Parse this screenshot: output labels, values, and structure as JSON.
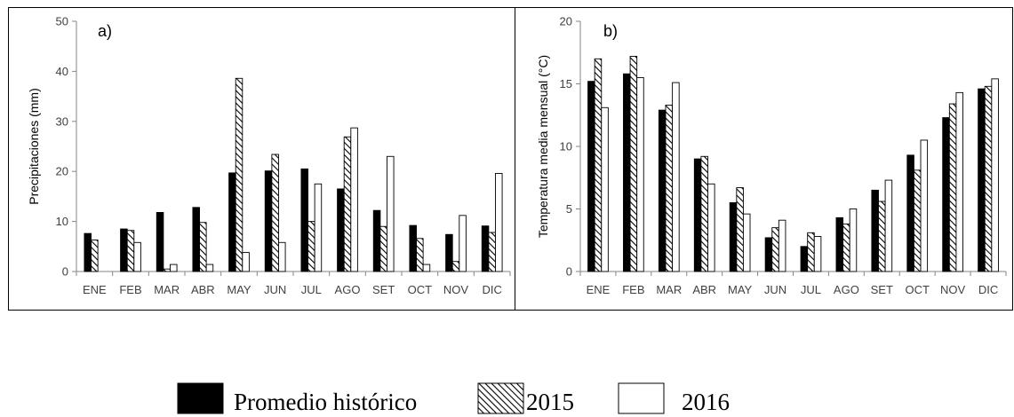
{
  "chart_data": [
    {
      "type": "bar",
      "panel_label": "a)",
      "ylabel": "Precipitaciones (mm)",
      "ylim": [
        0,
        50
      ],
      "yticks": [
        0,
        10,
        20,
        30,
        40,
        50
      ],
      "categories": [
        "ENE",
        "FEB",
        "MAR",
        "ABR",
        "MAY",
        "JUN",
        "JUL",
        "AGO",
        "SET",
        "OCT",
        "NOV",
        "DIC"
      ],
      "series": [
        {
          "name": "Promedio histórico",
          "values": [
            7.6,
            8.5,
            11.8,
            12.8,
            19.7,
            20.1,
            20.5,
            16.5,
            12.2,
            9.2,
            7.4,
            9.1
          ]
        },
        {
          "name": "2015",
          "values": [
            6.3,
            8.2,
            0.5,
            9.8,
            38.6,
            23.4,
            10.0,
            26.9,
            9.0,
            6.6,
            2.0,
            7.8
          ]
        },
        {
          "name": "2016",
          "values": [
            0,
            5.8,
            1.4,
            1.4,
            3.8,
            5.8,
            17.5,
            28.7,
            23.0,
            1.4,
            11.2,
            19.6
          ]
        }
      ]
    },
    {
      "type": "bar",
      "panel_label": "b)",
      "ylabel": "Temperatura media mensual (°C)",
      "ylim": [
        0,
        20
      ],
      "yticks": [
        0,
        5,
        10,
        15,
        20
      ],
      "categories": [
        "ENE",
        "FEB",
        "MAR",
        "ABR",
        "MAY",
        "JUN",
        "JUL",
        "AGO",
        "SET",
        "OCT",
        "NOV",
        "DIC"
      ],
      "series": [
        {
          "name": "Promedio histórico",
          "values": [
            15.2,
            15.8,
            12.9,
            9.0,
            5.5,
            2.7,
            2.0,
            4.3,
            6.5,
            9.3,
            12.3,
            14.6
          ]
        },
        {
          "name": "2015",
          "values": [
            17.0,
            17.2,
            13.3,
            9.2,
            6.7,
            3.5,
            3.1,
            3.8,
            5.6,
            8.1,
            13.4,
            14.8
          ]
        },
        {
          "name": "2016",
          "values": [
            13.1,
            15.5,
            15.1,
            7.0,
            4.6,
            4.1,
            2.8,
            5.0,
            7.3,
            10.5,
            14.3,
            15.4
          ]
        }
      ]
    }
  ],
  "legend": {
    "placement": "bottom-center",
    "items": [
      {
        "label": "Promedio histórico",
        "fill": "solid"
      },
      {
        "label": "2015",
        "fill": "hatched"
      },
      {
        "label": "2016",
        "fill": "white"
      }
    ]
  },
  "colors": {
    "solid": "#000000",
    "outline": "#000000",
    "hatch": "#000000",
    "background": "#ffffff",
    "axis": "#868686"
  }
}
